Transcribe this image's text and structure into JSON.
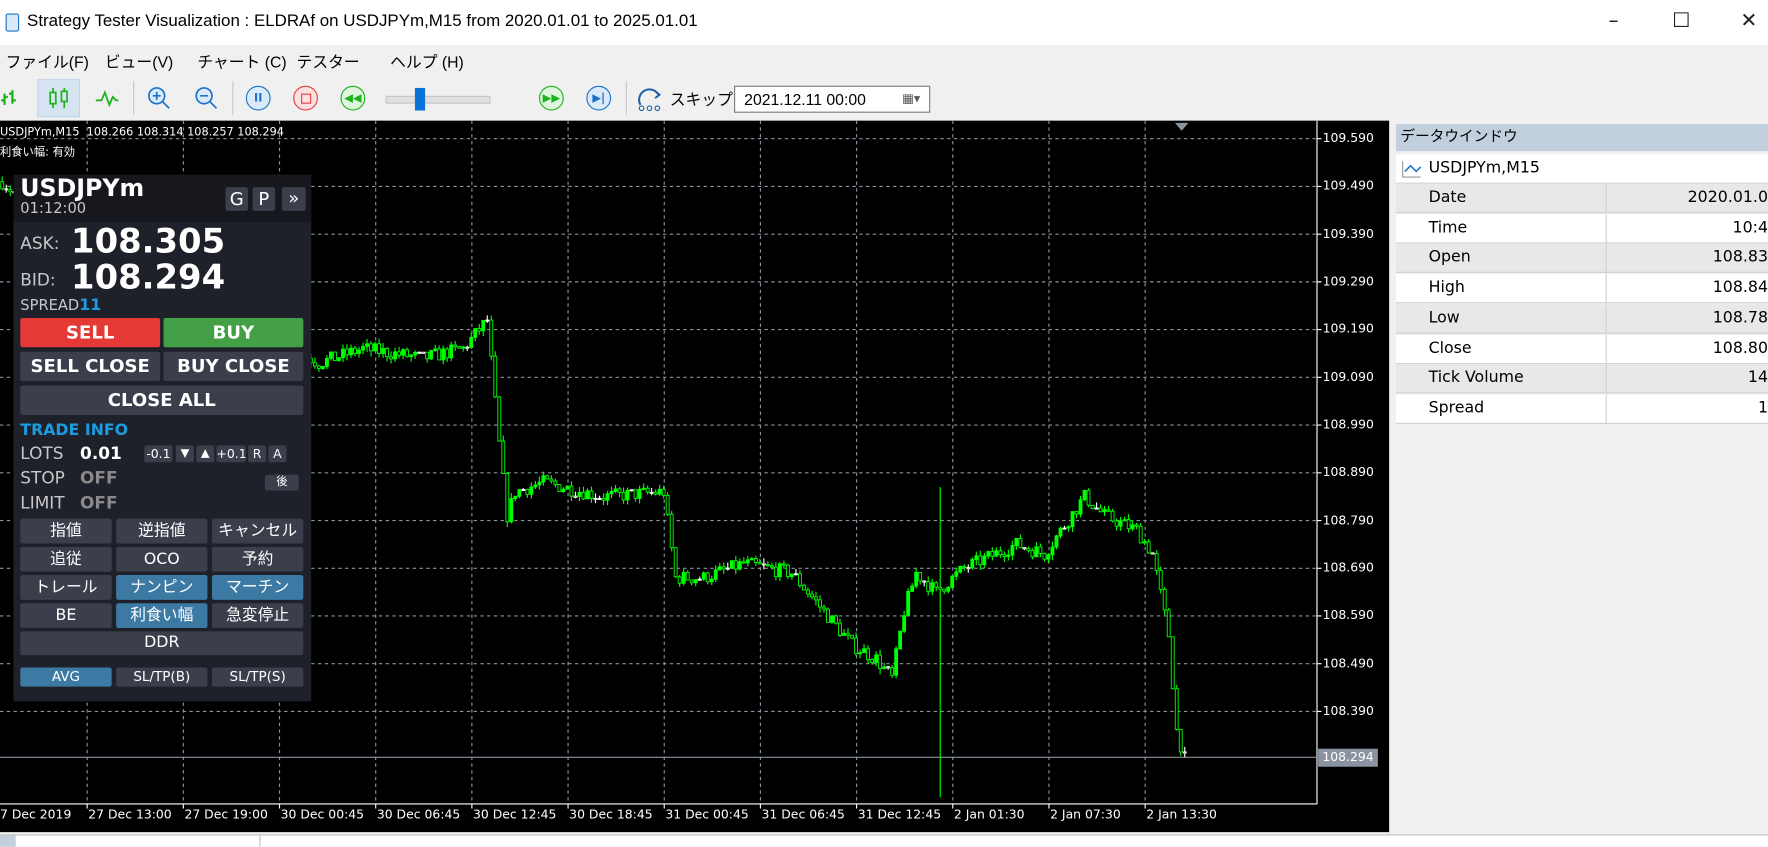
{
  "window": {
    "title": "Strategy Tester Visualization : ELDRAf on USDJPYm,M15 from 2020.01.01 to 2025.01.01",
    "minimize": "–",
    "maximize": "☐",
    "close": "✕"
  },
  "menu": [
    "ファイル(F)",
    "ビュー(V)",
    "チャート (C)",
    "テスター",
    "ヘルプ (H)"
  ],
  "toolbar": {
    "icons": [
      "bar-chart-icon",
      "candlestick-icon",
      "line-chart-icon",
      "zoom-in-icon",
      "zoom-out-icon",
      "pause-icon",
      "stop-icon",
      "rewind-icon",
      "fast-forward-icon",
      "step-forward-icon",
      "skip-icon"
    ],
    "speed_slider_fraction": 0.3,
    "skip_label": "スキップ",
    "skip_date": "2021.12.11 00:00",
    "candlestick_active": true
  },
  "chart": {
    "info_line": "USDJPYm,M15  108.266 108.314 108.257 108.294",
    "info_line2": "利食い幅: 有効",
    "price_labels": [
      "109.590",
      "109.490",
      "109.390",
      "109.290",
      "109.190",
      "109.090",
      "108.990",
      "108.890",
      "108.790",
      "108.690",
      "108.590",
      "108.490",
      "108.390"
    ],
    "current_price": "108.294",
    "time_labels": [
      "7 Dec 2019",
      "27 Dec 13:00",
      "27 Dec 19:00",
      "30 Dec 00:45",
      "30 Dec 06:45",
      "30 Dec 12:45",
      "30 Dec 18:45",
      "31 Dec 00:45",
      "31 Dec 06:45",
      "31 Dec 12:45",
      "2 Jan 01:30",
      "2 Jan 07:30",
      "2 Jan 13:30"
    ],
    "price_range": [
      108.19,
      109.64
    ],
    "price_path": [
      [
        0,
        109.5
      ],
      [
        10,
        109.42
      ],
      [
        79,
        109.12
      ],
      [
        90,
        109.15
      ],
      [
        105,
        109.13
      ],
      [
        115,
        109.15
      ],
      [
        121,
        109.21
      ],
      [
        124,
        108.95
      ],
      [
        126,
        108.8
      ],
      [
        128,
        108.85
      ],
      [
        135,
        108.87
      ],
      [
        150,
        108.84
      ],
      [
        165,
        108.85
      ],
      [
        168,
        108.67
      ],
      [
        175,
        108.67
      ],
      [
        185,
        108.7
      ],
      [
        197,
        108.68
      ],
      [
        205,
        108.6
      ],
      [
        212,
        108.53
      ],
      [
        218,
        108.5
      ],
      [
        222,
        108.46
      ],
      [
        225,
        108.6
      ],
      [
        228,
        108.68
      ],
      [
        233,
        108.64
      ],
      [
        240,
        108.69
      ],
      [
        253,
        108.74
      ],
      [
        260,
        108.72
      ],
      [
        270,
        108.84
      ],
      [
        275,
        108.8
      ],
      [
        283,
        108.77
      ],
      [
        287,
        108.72
      ],
      [
        291,
        108.55
      ],
      [
        293,
        108.35
      ],
      [
        295,
        108.29
      ]
    ],
    "colors": {
      "bull": "#00ff00",
      "grid": "#8a93a0",
      "background": "#000000"
    }
  },
  "panel": {
    "symbol": "USDJPYm",
    "time": "01:12:00",
    "g_button": "G",
    "p_button": "P",
    "expand_button": "»",
    "ask_label": "ASK:",
    "ask": "108.305",
    "bid_label": "BID:",
    "bid": "108.294",
    "spread_label": "SPREAD",
    "spread": "11",
    "sell": "SELL",
    "buy": "BUY",
    "sell_close": "SELL CLOSE",
    "buy_close": "BUY CLOSE",
    "close_all": "CLOSE ALL",
    "trade_info": "TRADE INFO",
    "lots_label": "LOTS",
    "lots": "0.01",
    "lot_buttons": [
      "-0.1",
      "▼",
      "▲",
      "+0.1",
      "R",
      "A"
    ],
    "stop_label": "STOP",
    "stop": "OFF",
    "limit_label": "LIMIT",
    "limit": "OFF",
    "after_button": "後",
    "grid_buttons": [
      "指値",
      "逆指値",
      "キャンセル",
      "追従",
      "OCO",
      "予約",
      "トレール",
      "ナンピン",
      "マーチン",
      "BE",
      "利食い幅",
      "急変停止"
    ],
    "active_grid_buttons": [
      7,
      8,
      10
    ],
    "ddr": "DDR",
    "bottom_buttons": [
      "AVG",
      "SL/TP(B)",
      "SL/TP(S)"
    ],
    "colors": {
      "sell": "#e53935",
      "buy": "#43a047",
      "accent": "#1e9be0",
      "active": "#3d7aa3"
    }
  },
  "data_window": {
    "title": "データウインドウ",
    "series": "USDJPYm,M15",
    "rows": [
      {
        "k": "Date",
        "v": "2020.01.0"
      },
      {
        "k": "Time",
        "v": "10:4"
      },
      {
        "k": "Open",
        "v": "108.83"
      },
      {
        "k": "High",
        "v": "108.84"
      },
      {
        "k": "Low",
        "v": "108.78"
      },
      {
        "k": "Close",
        "v": "108.80"
      },
      {
        "k": "Tick Volume",
        "v": "14"
      },
      {
        "k": "Spread",
        "v": "1"
      }
    ]
  }
}
